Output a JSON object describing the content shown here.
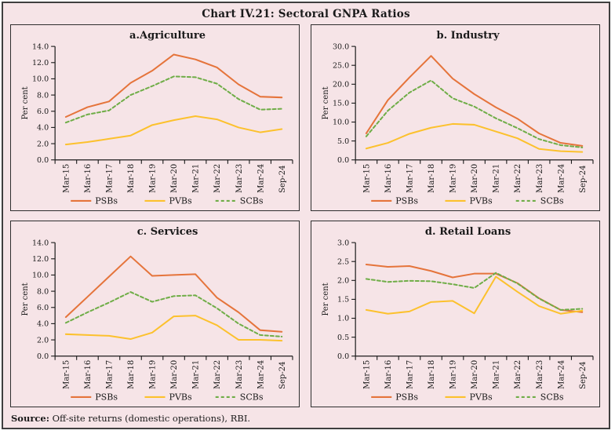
{
  "title": "Chart IV.21: Sectoral GNPA Ratios",
  "source": {
    "label": "Source:",
    "text": " Off-site returns (domestic operations), RBI."
  },
  "colors": {
    "background": "#f6e4e7",
    "frame_border": "#3f3f3f",
    "panel_border": "#2e2e2e",
    "text": "#1a1a1a",
    "axis": "#1a1a1a",
    "psbs": "#e5743b",
    "pvbs": "#fcc12d",
    "scbs": "#6fad47"
  },
  "legend": {
    "entries": [
      "PSBs",
      "PVBs",
      "SCBs"
    ],
    "position": "bottom"
  },
  "categories": [
    "Mar-15",
    "Mar-16",
    "Mar-17",
    "Mar-18",
    "Mar-19",
    "Mar-20",
    "Mar-21",
    "Mar-22",
    "Mar-23",
    "Mar-24",
    "Sep-24"
  ],
  "chart_data": [
    {
      "id": "agriculture",
      "type": "line",
      "title": "a.Agriculture",
      "ylabel": "Per cent",
      "ylim": [
        0,
        14
      ],
      "ystep": 2,
      "grid": false,
      "categories": [
        "Mar-15",
        "Mar-16",
        "Mar-17",
        "Mar-18",
        "Mar-19",
        "Mar-20",
        "Mar-21",
        "Mar-22",
        "Mar-23",
        "Mar-24",
        "Sep-24"
      ],
      "series": [
        {
          "name": "PSBs",
          "color": "#e5743b",
          "dash": null,
          "values": [
            5.3,
            6.5,
            7.2,
            9.5,
            11.0,
            13.0,
            12.4,
            11.4,
            9.3,
            7.8,
            7.7
          ]
        },
        {
          "name": "PVBs",
          "color": "#fcc12d",
          "dash": null,
          "values": [
            1.9,
            2.2,
            2.6,
            3.0,
            4.3,
            4.9,
            5.4,
            5.0,
            4.0,
            3.4,
            3.8
          ]
        },
        {
          "name": "SCBs",
          "color": "#6fad47",
          "dash": "4,3",
          "values": [
            4.6,
            5.6,
            6.1,
            8.0,
            9.1,
            10.3,
            10.2,
            9.4,
            7.5,
            6.2,
            6.3
          ]
        }
      ]
    },
    {
      "id": "industry",
      "type": "line",
      "title": "b. Industry",
      "ylabel": "Per cent",
      "ylim": [
        0,
        30
      ],
      "ystep": 5,
      "grid": false,
      "categories": [
        "Mar-15",
        "Mar-16",
        "Mar-17",
        "Mar-18",
        "Mar-19",
        "Mar-20",
        "Mar-21",
        "Mar-22",
        "Mar-23",
        "Mar-24",
        "Sep-24"
      ],
      "series": [
        {
          "name": "PSBs",
          "color": "#e5743b",
          "dash": null,
          "values": [
            7.0,
            15.8,
            21.8,
            27.5,
            21.5,
            17.4,
            13.9,
            10.9,
            7.0,
            4.5,
            3.7
          ]
        },
        {
          "name": "PVBs",
          "color": "#fcc12d",
          "dash": null,
          "values": [
            3.0,
            4.5,
            6.9,
            8.5,
            9.5,
            9.3,
            7.5,
            5.7,
            2.9,
            2.3,
            2.1
          ]
        },
        {
          "name": "SCBs",
          "color": "#6fad47",
          "dash": "4,3",
          "values": [
            6.2,
            13.0,
            17.8,
            21.0,
            16.3,
            14.1,
            11.0,
            8.4,
            5.5,
            3.9,
            3.3
          ]
        }
      ]
    },
    {
      "id": "services",
      "type": "line",
      "title": "c. Services",
      "ylabel": "Per cent",
      "ylim": [
        0,
        14
      ],
      "ystep": 2,
      "grid": false,
      "categories": [
        "Mar-15",
        "Mar-16",
        "Mar-17",
        "Mar-18",
        "Mar-19",
        "Mar-20",
        "Mar-21",
        "Mar-22",
        "Mar-23",
        "Mar-24",
        "Sep-24"
      ],
      "series": [
        {
          "name": "PSBs",
          "color": "#e5743b",
          "dash": null,
          "values": [
            4.8,
            7.3,
            9.8,
            12.3,
            9.9,
            10.0,
            10.1,
            7.2,
            5.4,
            3.2,
            3.0
          ]
        },
        {
          "name": "PVBs",
          "color": "#fcc12d",
          "dash": null,
          "values": [
            2.7,
            2.6,
            2.5,
            2.1,
            2.9,
            4.9,
            5.0,
            3.8,
            2.0,
            2.0,
            1.9
          ]
        },
        {
          "name": "SCBs",
          "color": "#6fad47",
          "dash": "4,3",
          "values": [
            4.1,
            5.4,
            6.6,
            7.9,
            6.7,
            7.4,
            7.5,
            5.9,
            4.0,
            2.6,
            2.4
          ]
        }
      ]
    },
    {
      "id": "retail",
      "type": "line",
      "title": "d. Retail Loans",
      "ylabel": "Per cent",
      "ylim": [
        0,
        3
      ],
      "ystep": 0.5,
      "grid": false,
      "categories": [
        "Mar-15",
        "Mar-16",
        "Mar-17",
        "Mar-18",
        "Mar-19",
        "Mar-20",
        "Mar-21",
        "Mar-22",
        "Mar-23",
        "Mar-24",
        "Sep-24"
      ],
      "series": [
        {
          "name": "PSBs",
          "color": "#e5743b",
          "dash": null,
          "values": [
            2.42,
            2.36,
            2.38,
            2.25,
            2.08,
            2.18,
            2.18,
            1.93,
            1.53,
            1.22,
            1.16
          ]
        },
        {
          "name": "PVBs",
          "color": "#fcc12d",
          "dash": null,
          "values": [
            1.22,
            1.12,
            1.18,
            1.43,
            1.46,
            1.13,
            2.1,
            1.7,
            1.32,
            1.12,
            1.2
          ]
        },
        {
          "name": "SCBs",
          "color": "#6fad47",
          "dash": "4,3",
          "values": [
            2.04,
            1.96,
            1.99,
            1.98,
            1.9,
            1.8,
            2.2,
            1.92,
            1.52,
            1.22,
            1.25
          ]
        }
      ]
    }
  ]
}
